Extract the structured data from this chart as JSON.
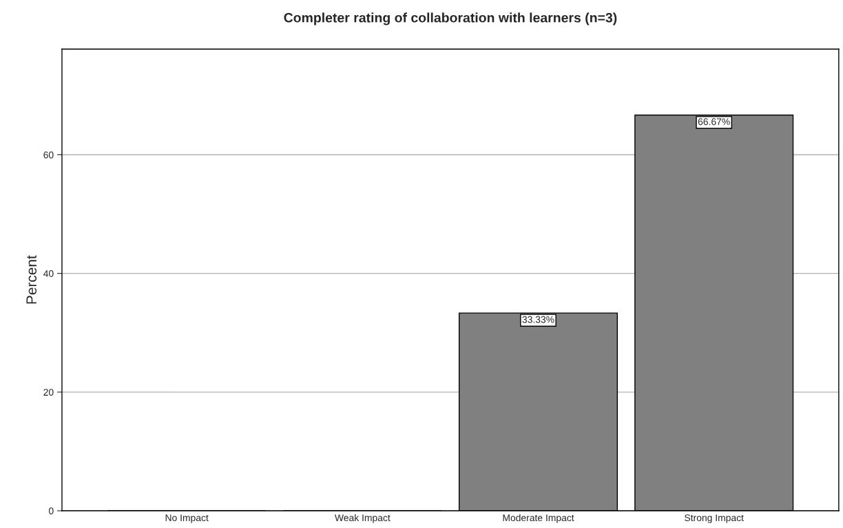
{
  "chart_data": {
    "type": "bar",
    "title": "Completer rating of collaboration with learners (n=3)",
    "ylabel": "Percent",
    "categories": [
      "No Impact",
      "Weak Impact",
      "Moderate Impact",
      "Strong Impact"
    ],
    "values": [
      0,
      0,
      33.33,
      66.67
    ],
    "value_labels": [
      null,
      null,
      "33.33%",
      "66.67%"
    ],
    "color": "#808080",
    "ylim": [
      0,
      77.8
    ],
    "yticks": [
      0,
      20,
      40,
      60
    ],
    "grid": "y",
    "legend": false
  }
}
